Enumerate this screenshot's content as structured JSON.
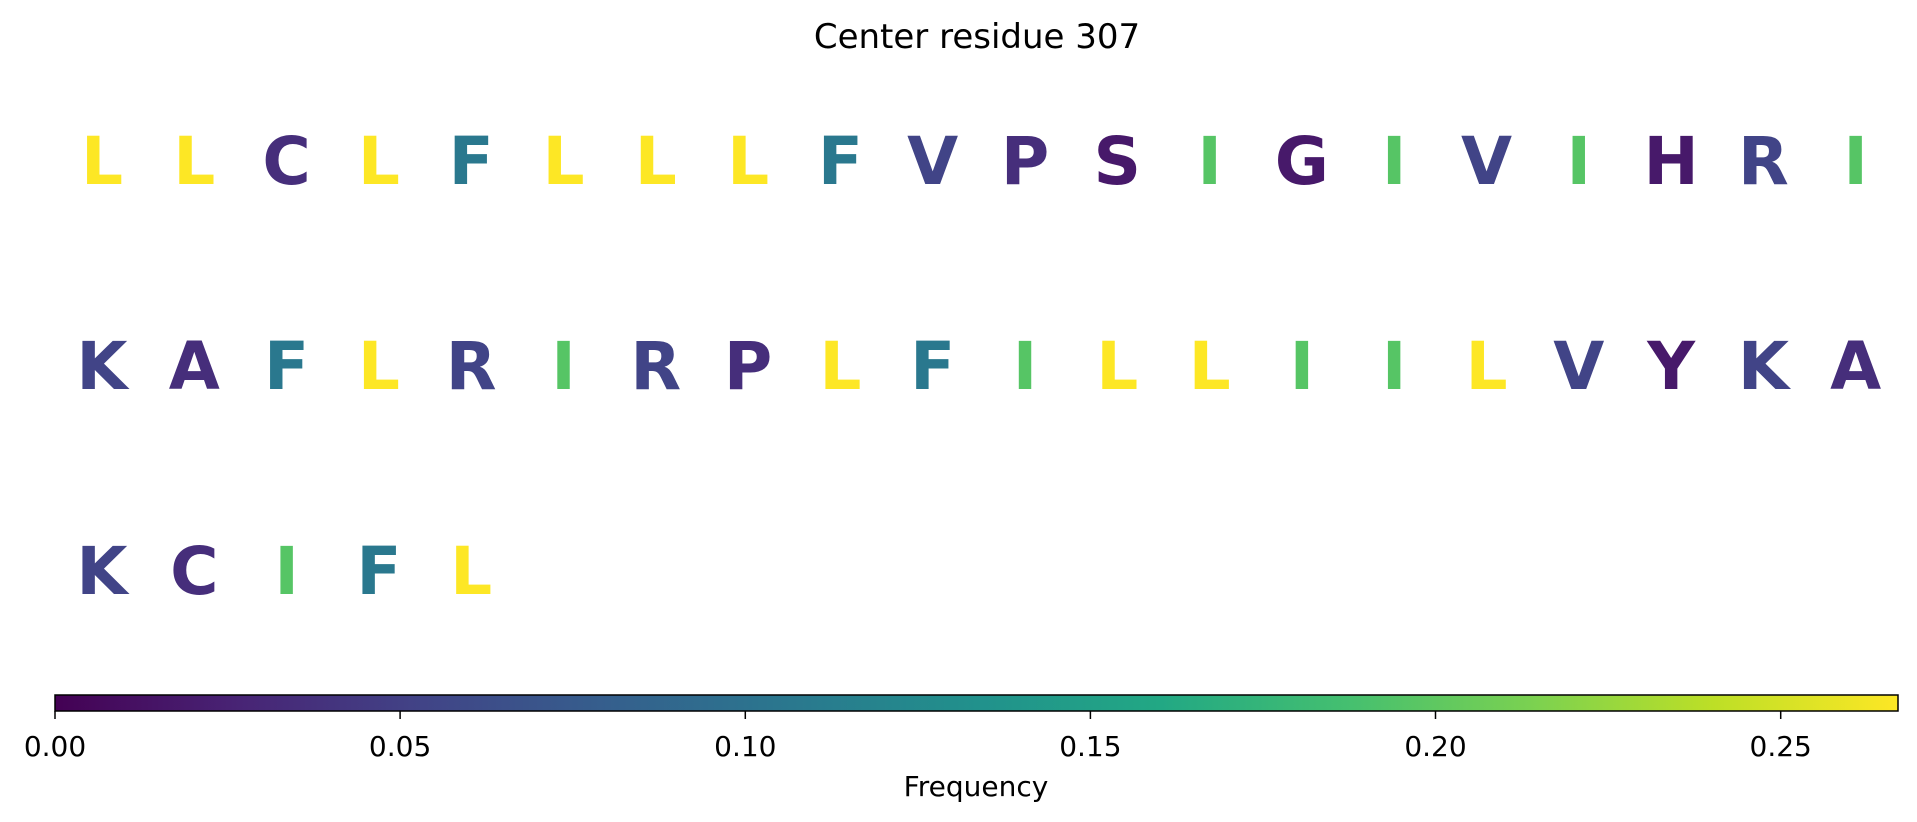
{
  "chart_data": {
    "type": "heatmap",
    "title": "Center residue 307",
    "residues": [
      {
        "letter": "L",
        "frequency": 0.267
      },
      {
        "letter": "L",
        "frequency": 0.267
      },
      {
        "letter": "C",
        "frequency": 0.035
      },
      {
        "letter": "L",
        "frequency": 0.267
      },
      {
        "letter": "F",
        "frequency": 0.107
      },
      {
        "letter": "L",
        "frequency": 0.267
      },
      {
        "letter": "L",
        "frequency": 0.267
      },
      {
        "letter": "L",
        "frequency": 0.267
      },
      {
        "letter": "F",
        "frequency": 0.107
      },
      {
        "letter": "V",
        "frequency": 0.053
      },
      {
        "letter": "P",
        "frequency": 0.035
      },
      {
        "letter": "S",
        "frequency": 0.018
      },
      {
        "letter": "I",
        "frequency": 0.196
      },
      {
        "letter": "G",
        "frequency": 0.018
      },
      {
        "letter": "I",
        "frequency": 0.196
      },
      {
        "letter": "V",
        "frequency": 0.053
      },
      {
        "letter": "I",
        "frequency": 0.196
      },
      {
        "letter": "H",
        "frequency": 0.018
      },
      {
        "letter": "R",
        "frequency": 0.053
      },
      {
        "letter": "I",
        "frequency": 0.196
      },
      {
        "letter": "K",
        "frequency": 0.053
      },
      {
        "letter": "A",
        "frequency": 0.035
      },
      {
        "letter": "F",
        "frequency": 0.107
      },
      {
        "letter": "L",
        "frequency": 0.267
      },
      {
        "letter": "R",
        "frequency": 0.053
      },
      {
        "letter": "I",
        "frequency": 0.196
      },
      {
        "letter": "R",
        "frequency": 0.053
      },
      {
        "letter": "P",
        "frequency": 0.035
      },
      {
        "letter": "L",
        "frequency": 0.267
      },
      {
        "letter": "F",
        "frequency": 0.107
      },
      {
        "letter": "I",
        "frequency": 0.196
      },
      {
        "letter": "L",
        "frequency": 0.267
      },
      {
        "letter": "L",
        "frequency": 0.267
      },
      {
        "letter": "I",
        "frequency": 0.196
      },
      {
        "letter": "I",
        "frequency": 0.196
      },
      {
        "letter": "L",
        "frequency": 0.267
      },
      {
        "letter": "V",
        "frequency": 0.053
      },
      {
        "letter": "Y",
        "frequency": 0.018
      },
      {
        "letter": "K",
        "frequency": 0.053
      },
      {
        "letter": "A",
        "frequency": 0.035
      },
      {
        "letter": "K",
        "frequency": 0.053
      },
      {
        "letter": "C",
        "frequency": 0.035
      },
      {
        "letter": "I",
        "frequency": 0.196
      },
      {
        "letter": "F",
        "frequency": 0.107
      },
      {
        "letter": "L",
        "frequency": 0.267
      }
    ],
    "residues_per_row": 20,
    "colormap": "viridis",
    "colorbar": {
      "label": "Frequency",
      "range": [
        0,
        0.267
      ],
      "ticks": [
        0.0,
        0.05,
        0.1,
        0.15,
        0.2,
        0.25
      ],
      "tick_labels": [
        "0.00",
        "0.05",
        "0.10",
        "0.15",
        "0.20",
        "0.25"
      ],
      "orientation": "horizontal",
      "placement": "bottom"
    }
  }
}
